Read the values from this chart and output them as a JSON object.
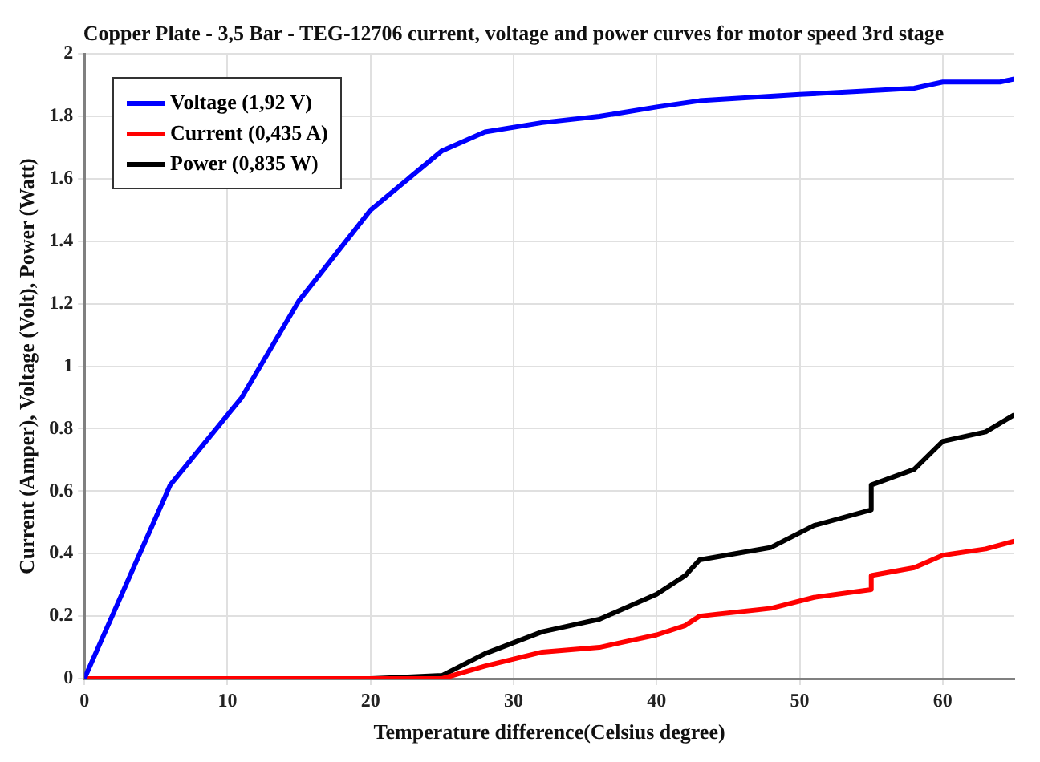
{
  "chart_data": {
    "type": "line",
    "title": "Copper Plate - 3,5 Bar - TEG-12706 current, voltage and power curves for motor speed 3rd stage",
    "xlabel": "Temperature difference(Celsius degree)",
    "ylabel": "Current (Amper), Voltage (Volt), Power (Watt)",
    "xlim": [
      0,
      65
    ],
    "xticks": [
      0,
      10,
      20,
      30,
      40,
      50,
      60
    ],
    "ylim": [
      0,
      2
    ],
    "yticks": [
      0,
      0.2,
      0.4,
      0.6,
      0.8,
      1,
      1.2,
      1.4,
      1.6,
      1.8,
      2
    ],
    "grid": true,
    "legend": "top left",
    "marker": "none",
    "line_style": "solid",
    "series": [
      {
        "name": "Voltage (1,92 V)",
        "color": "#0000ff",
        "x": [
          0,
          6,
          11,
          15,
          20,
          25,
          28,
          32,
          36,
          40,
          43,
          50,
          54,
          58,
          60,
          64,
          65
        ],
        "values": [
          0,
          0.62,
          0.9,
          1.21,
          1.5,
          1.69,
          1.75,
          1.78,
          1.8,
          1.83,
          1.85,
          1.87,
          1.88,
          1.89,
          1.91,
          1.91,
          1.92
        ]
      },
      {
        "name": "Current (0,435 A)",
        "color": "#ff0000",
        "x": [
          0,
          25,
          28,
          32,
          36,
          40,
          42,
          43,
          48,
          51,
          55,
          55,
          58,
          60,
          63,
          65
        ],
        "values": [
          0,
          0,
          0.04,
          0.085,
          0.1,
          0.14,
          0.17,
          0.2,
          0.225,
          0.26,
          0.285,
          0.33,
          0.355,
          0.395,
          0.415,
          0.44
        ]
      },
      {
        "name": "Power (0,835 W)",
        "color": "#000000",
        "x": [
          0,
          20,
          25,
          28,
          32,
          36,
          40,
          42,
          43,
          48,
          51,
          55,
          55,
          58,
          60,
          63,
          65
        ],
        "values": [
          0,
          0,
          0.01,
          0.08,
          0.15,
          0.19,
          0.27,
          0.33,
          0.38,
          0.42,
          0.49,
          0.54,
          0.62,
          0.67,
          0.76,
          0.79,
          0.845
        ]
      }
    ]
  }
}
